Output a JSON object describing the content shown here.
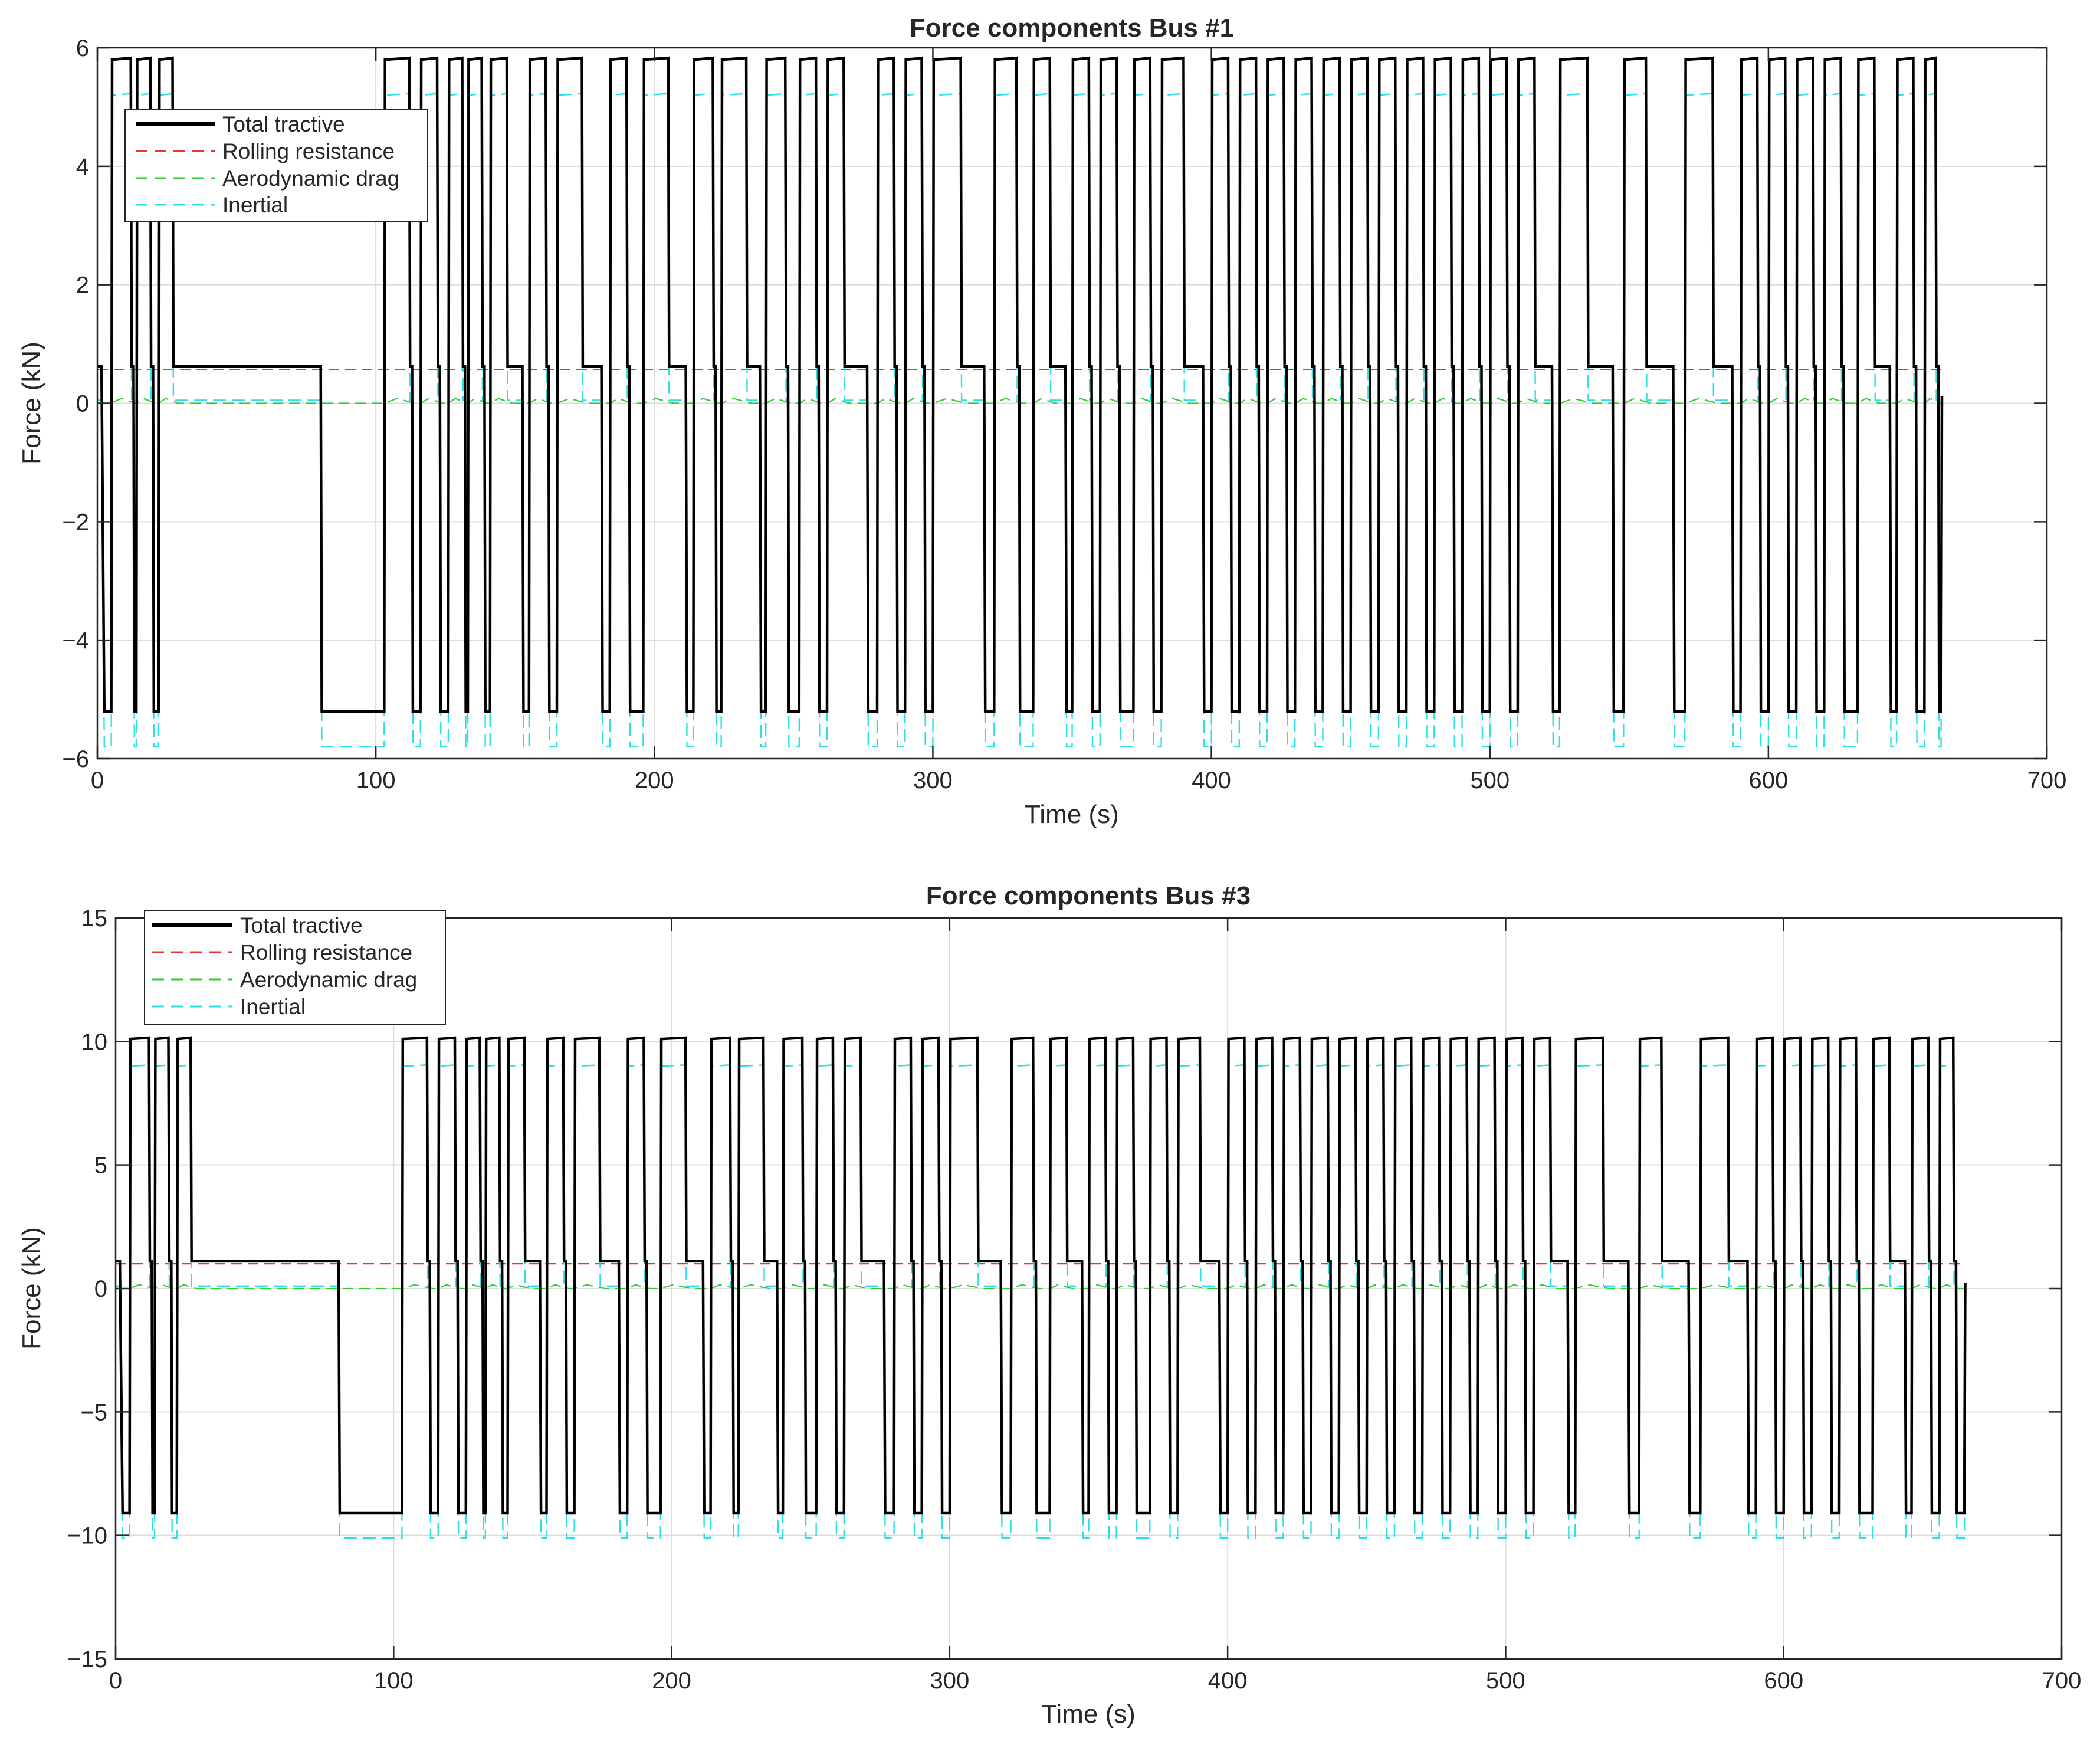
{
  "colors": {
    "total": "#000000",
    "rolling": "#e8333a",
    "aero": "#33cc33",
    "inertial": "#29e0e6",
    "grid": "#dcdcdc",
    "axis": "#262626"
  },
  "chart_data": [
    {
      "type": "line",
      "title": "Force components Bus #1",
      "xlabel": "Time (s)",
      "ylabel": "Force (kN)",
      "xlim": [
        0,
        700
      ],
      "ylim": [
        -6,
        6
      ],
      "xticks": [
        0,
        100,
        200,
        300,
        400,
        500,
        600,
        700
      ],
      "yticks": [
        -6,
        -4,
        -2,
        0,
        2,
        4,
        6
      ],
      "xtick_labels": [
        "0",
        "100",
        "200",
        "300",
        "400",
        "500",
        "600",
        "700"
      ],
      "ytick_labels": [
        "−6",
        "−4",
        "−2",
        "0",
        "2",
        "4",
        "6"
      ],
      "grid": true,
      "legend_position": "top-left",
      "legend": [
        "Total tractive",
        "Rolling resistance",
        "Aerodynamic drag",
        "Inertial"
      ],
      "series": [
        {
          "name": "Total tractive",
          "style": "solid",
          "high": 5.8,
          "cruise": 0.62,
          "low": -5.2,
          "end": 662
        },
        {
          "name": "Rolling resistance",
          "style": "dashed",
          "value": 0.57,
          "end": 662
        },
        {
          "name": "Aerodynamic drag",
          "style": "dashed",
          "value": 0.0,
          "bump": 0.08,
          "end": 662
        },
        {
          "name": "Inertial",
          "style": "dashed",
          "high": 5.2,
          "cruise": 0.05,
          "low": -5.8,
          "end": 662
        }
      ],
      "events": [
        [
          5,
          12
        ],
        [
          14,
          19
        ],
        [
          22,
          27
        ],
        [
          103,
          112
        ],
        [
          116,
          122
        ],
        [
          126,
          131
        ],
        [
          133,
          138
        ],
        [
          141,
          147
        ],
        [
          155,
          161
        ],
        [
          165,
          174
        ],
        [
          184,
          190
        ],
        [
          196,
          205
        ],
        [
          214,
          221
        ],
        [
          224,
          233
        ],
        [
          240,
          247
        ],
        [
          252,
          258
        ],
        [
          262,
          268
        ],
        [
          280,
          286
        ],
        [
          290,
          296
        ],
        [
          300,
          310
        ],
        [
          322,
          330
        ],
        [
          336,
          342
        ],
        [
          350,
          356
        ],
        [
          360,
          366
        ],
        [
          372,
          378
        ],
        [
          382,
          390
        ],
        [
          400,
          406
        ],
        [
          410,
          416
        ],
        [
          420,
          426
        ],
        [
          430,
          436
        ],
        [
          440,
          446
        ],
        [
          450,
          456
        ],
        [
          460,
          466
        ],
        [
          470,
          476
        ],
        [
          480,
          486
        ],
        [
          490,
          496
        ],
        [
          500,
          506
        ],
        [
          510,
          516
        ],
        [
          525,
          535
        ],
        [
          548,
          556
        ],
        [
          570,
          580
        ],
        [
          590,
          596
        ],
        [
          600,
          606
        ],
        [
          610,
          616
        ],
        [
          620,
          626
        ],
        [
          632,
          638
        ],
        [
          646,
          652
        ],
        [
          656,
          660
        ]
      ]
    },
    {
      "type": "line",
      "title": "Force components Bus #3",
      "xlabel": "Time (s)",
      "ylabel": "Force (kN)",
      "xlim": [
        0,
        700
      ],
      "ylim": [
        -15,
        15
      ],
      "xticks": [
        0,
        100,
        200,
        300,
        400,
        500,
        600,
        700
      ],
      "yticks": [
        -15,
        -10,
        -5,
        0,
        5,
        10,
        15
      ],
      "xtick_labels": [
        "0",
        "100",
        "200",
        "300",
        "400",
        "500",
        "600",
        "700"
      ],
      "ytick_labels": [
        "−15",
        "−10",
        "−5",
        "0",
        "5",
        "10",
        "15"
      ],
      "grid": true,
      "legend_position": "top-left",
      "legend": [
        "Total tractive",
        "Rolling resistance",
        "Aerodynamic drag",
        "Inertial"
      ],
      "series": [
        {
          "name": "Total tractive",
          "style": "solid",
          "high": 10.1,
          "cruise": 1.1,
          "low": -9.1,
          "end": 665
        },
        {
          "name": "Rolling resistance",
          "style": "dashed",
          "value": 1.0,
          "end": 665
        },
        {
          "name": "Aerodynamic drag",
          "style": "dashed",
          "value": 0.0,
          "bump": 0.15,
          "end": 665
        },
        {
          "name": "Inertial",
          "style": "dashed",
          "high": 9.0,
          "cruise": 0.1,
          "low": -10.1,
          "end": 665
        }
      ],
      "events": [
        [
          5,
          12
        ],
        [
          14,
          19
        ],
        [
          22,
          27
        ],
        [
          103,
          112
        ],
        [
          116,
          122
        ],
        [
          126,
          131
        ],
        [
          133,
          138
        ],
        [
          141,
          147
        ],
        [
          155,
          161
        ],
        [
          165,
          174
        ],
        [
          184,
          190
        ],
        [
          196,
          205
        ],
        [
          214,
          221
        ],
        [
          224,
          233
        ],
        [
          240,
          247
        ],
        [
          252,
          258
        ],
        [
          262,
          268
        ],
        [
          280,
          286
        ],
        [
          290,
          296
        ],
        [
          300,
          310
        ],
        [
          322,
          330
        ],
        [
          336,
          342
        ],
        [
          350,
          356
        ],
        [
          360,
          366
        ],
        [
          372,
          378
        ],
        [
          382,
          390
        ],
        [
          400,
          406
        ],
        [
          410,
          416
        ],
        [
          420,
          426
        ],
        [
          430,
          436
        ],
        [
          440,
          446
        ],
        [
          450,
          456
        ],
        [
          460,
          466
        ],
        [
          470,
          476
        ],
        [
          480,
          486
        ],
        [
          490,
          496
        ],
        [
          500,
          506
        ],
        [
          510,
          516
        ],
        [
          525,
          535
        ],
        [
          548,
          556
        ],
        [
          570,
          580
        ],
        [
          590,
          596
        ],
        [
          600,
          606
        ],
        [
          610,
          616
        ],
        [
          620,
          626
        ],
        [
          632,
          638
        ],
        [
          646,
          652
        ],
        [
          656,
          661
        ]
      ]
    }
  ]
}
